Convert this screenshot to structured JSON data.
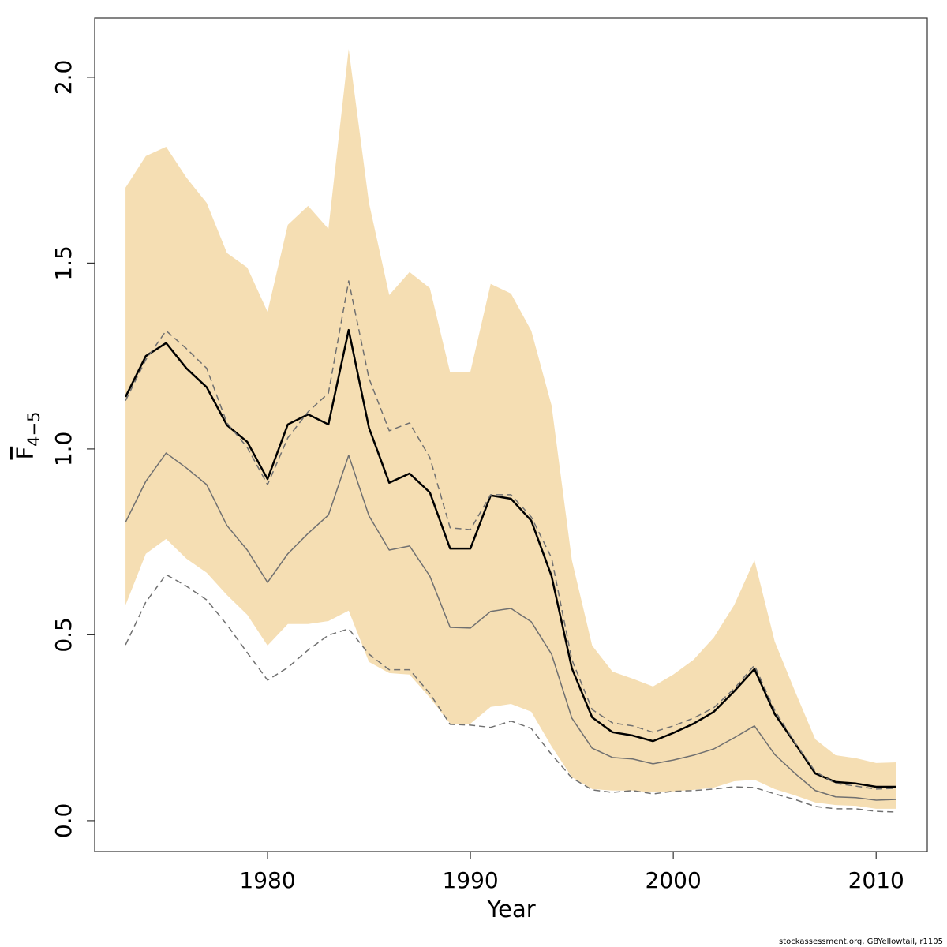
{
  "chart_data": {
    "type": "line",
    "x_label": "Year",
    "y_label": "F",
    "y_label_sub": "4−5",
    "footer": "stockassessment.org, GBYellowtail, r1105",
    "x": [
      1973,
      1974,
      1975,
      1976,
      1977,
      1978,
      1979,
      1980,
      1981,
      1982,
      1983,
      1984,
      1985,
      1986,
      1987,
      1988,
      1989,
      1990,
      1991,
      1992,
      1993,
      1994,
      1995,
      1996,
      1997,
      1998,
      1999,
      2000,
      2001,
      2002,
      2003,
      2004,
      2005,
      2006,
      2007,
      2008,
      2009,
      2010,
      2011
    ],
    "xlim": [
      1971.48,
      2012.52
    ],
    "xticks": [
      1980,
      1990,
      2000,
      2010
    ],
    "ylim": [
      -0.083,
      2.159
    ],
    "yticks": [
      {
        "value": 0,
        "label": "0.0"
      },
      {
        "value": 0.5,
        "label": "0.5"
      },
      {
        "value": 1,
        "label": "1.0"
      },
      {
        "value": 1.5,
        "label": "1.5"
      },
      {
        "value": 2,
        "label": "2.0"
      }
    ],
    "band": {
      "color": "#f5deb3",
      "upper": [
        1.703,
        1.788,
        1.813,
        1.73,
        1.662,
        1.527,
        1.488,
        1.369,
        1.603,
        1.654,
        1.592,
        2.076,
        1.662,
        1.414,
        1.476,
        1.433,
        1.206,
        1.208,
        1.444,
        1.418,
        1.318,
        1.117,
        0.701,
        0.471,
        0.401,
        0.382,
        0.361,
        0.393,
        0.433,
        0.493,
        0.58,
        0.701,
        0.482,
        0.348,
        0.219,
        0.176,
        0.168,
        0.155,
        0.157
      ],
      "lower": [
        0.58,
        0.718,
        0.758,
        0.705,
        0.667,
        0.607,
        0.554,
        0.471,
        0.529,
        0.529,
        0.537,
        0.565,
        0.427,
        0.397,
        0.393,
        0.331,
        0.261,
        0.261,
        0.306,
        0.314,
        0.293,
        0.2,
        0.117,
        0.085,
        0.081,
        0.081,
        0.076,
        0.079,
        0.083,
        0.089,
        0.106,
        0.11,
        0.085,
        0.068,
        0.049,
        0.042,
        0.04,
        0.032,
        0.032
      ]
    },
    "series": [
      {
        "color": "#000000",
        "style": "solid",
        "width": 2.5,
        "values": [
          1.14,
          1.25,
          1.285,
          1.217,
          1.166,
          1.064,
          1.019,
          0.919,
          1.066,
          1.093,
          1.066,
          1.32,
          1.057,
          0.909,
          0.934,
          0.883,
          0.732,
          0.732,
          0.875,
          0.866,
          0.807,
          0.658,
          0.41,
          0.278,
          0.238,
          0.229,
          0.214,
          0.236,
          0.261,
          0.293,
          0.348,
          0.408,
          0.287,
          0.208,
          0.127,
          0.104,
          0.1,
          0.091,
          0.091
        ]
      },
      {
        "color": "#707070",
        "style": "solid",
        "width": 1.5,
        "values": [
          0.803,
          0.913,
          0.989,
          0.949,
          0.904,
          0.794,
          0.728,
          0.641,
          0.718,
          0.773,
          0.822,
          0.983,
          0.82,
          0.728,
          0.739,
          0.658,
          0.52,
          0.518,
          0.563,
          0.571,
          0.535,
          0.448,
          0.276,
          0.195,
          0.17,
          0.166,
          0.153,
          0.163,
          0.176,
          0.193,
          0.223,
          0.255,
          0.178,
          0.127,
          0.081,
          0.064,
          0.062,
          0.055,
          0.057
        ]
      },
      {
        "color": "#707070",
        "style": "dashed",
        "width": 1.5,
        "values": [
          1.13,
          1.24,
          1.318,
          1.27,
          1.217,
          1.07,
          1.004,
          0.904,
          1.03,
          1.1,
          1.15,
          1.452,
          1.19,
          1.049,
          1.07,
          0.977,
          0.788,
          0.783,
          0.877,
          0.877,
          0.817,
          0.707,
          0.433,
          0.299,
          0.263,
          0.255,
          0.238,
          0.255,
          0.276,
          0.304,
          0.355,
          0.418,
          0.297,
          0.21,
          0.132,
          0.1,
          0.093,
          0.085,
          0.087
        ]
      },
      {
        "color": "#707070",
        "style": "dashed",
        "width": 1.5,
        "values": [
          0.473,
          0.588,
          0.662,
          0.631,
          0.594,
          0.527,
          0.452,
          0.378,
          0.412,
          0.459,
          0.499,
          0.516,
          0.448,
          0.406,
          0.406,
          0.342,
          0.259,
          0.257,
          0.251,
          0.268,
          0.248,
          0.178,
          0.115,
          0.083,
          0.076,
          0.081,
          0.072,
          0.079,
          0.081,
          0.085,
          0.091,
          0.089,
          0.072,
          0.057,
          0.038,
          0.032,
          0.032,
          0.025,
          0.023
        ]
      }
    ]
  }
}
